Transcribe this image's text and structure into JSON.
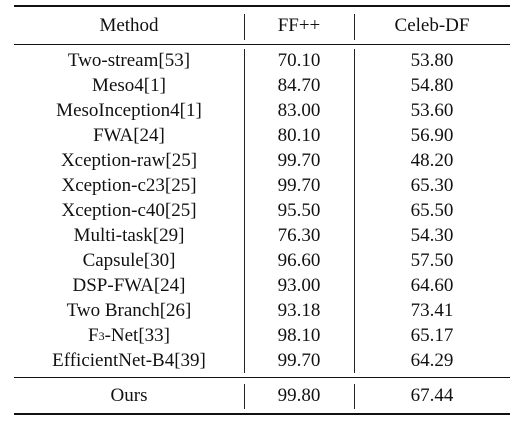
{
  "table": {
    "headers": [
      "Method",
      "FF++",
      "Celeb-DF"
    ],
    "rows": [
      {
        "method": "Two-stream[53]",
        "ff": "70.10",
        "celeb": "53.80"
      },
      {
        "method": "Meso4[1]",
        "ff": "84.70",
        "celeb": "54.80"
      },
      {
        "method": "MesoInception4[1]",
        "ff": "83.00",
        "celeb": "53.60"
      },
      {
        "method": "FWA[24]",
        "ff": "80.10",
        "celeb": "56.90"
      },
      {
        "method": "Xception-raw[25]",
        "ff": "99.70",
        "celeb": "48.20"
      },
      {
        "method": "Xception-c23[25]",
        "ff": "99.70",
        "celeb": "65.30"
      },
      {
        "method": "Xception-c40[25]",
        "ff": "95.50",
        "celeb": "65.50"
      },
      {
        "method": "Multi-task[29]",
        "ff": "76.30",
        "celeb": "54.30"
      },
      {
        "method": "Capsule[30]",
        "ff": "96.60",
        "celeb": "57.50"
      },
      {
        "method": "DSP-FWA[24]",
        "ff": "93.00",
        "celeb": "64.60"
      },
      {
        "method": "Two Branch[26]",
        "ff": "93.18",
        "celeb": "73.41"
      },
      {
        "method_base": "F",
        "method_sup": "3",
        "method_rest": "-Net[33]",
        "ff": "98.10",
        "celeb": "65.17"
      },
      {
        "method": "EfficientNet-B4[39]",
        "ff": "99.70",
        "celeb": "64.29"
      }
    ],
    "ours": {
      "method": "Ours",
      "ff": "99.80",
      "celeb": "67.44"
    }
  }
}
